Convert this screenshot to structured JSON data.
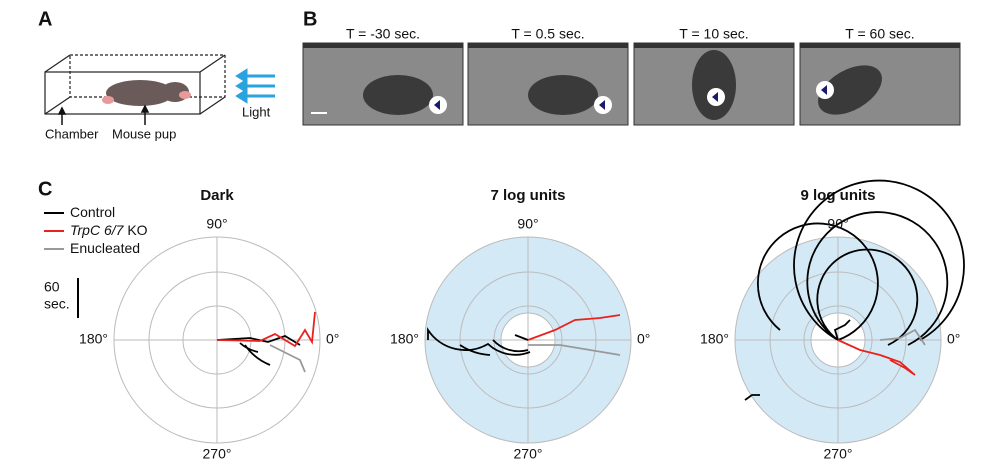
{
  "panel_a": {
    "label": "A",
    "chamber": "Chamber",
    "pup": "Mouse pup",
    "light": "Light"
  },
  "panel_b": {
    "label": "B",
    "frames": [
      "T = -30 sec.",
      "T = 0.5 sec.",
      "T = 10 sec.",
      "T = 60 sec."
    ]
  },
  "panel_c": {
    "label": "C",
    "legend": [
      {
        "name": "Control",
        "color": "#000000"
      },
      {
        "name": "TrpC 6/7",
        "suffix": "KO",
        "color": "#e8231f"
      },
      {
        "name": "Enucleated",
        "color": "#999999"
      }
    ],
    "scale_label": [
      "60",
      "sec."
    ],
    "plots": [
      {
        "title": "Dark",
        "background": "#ffffff",
        "angles": [
          "90°",
          "180°",
          "0°",
          "270°"
        ]
      },
      {
        "title": "7 log units",
        "background": "#d4e9f6",
        "angles": [
          "90°",
          "180°",
          "0°",
          "270°"
        ]
      },
      {
        "title": "9 log units",
        "background": "#d4e9f6",
        "angles": [
          "90°",
          "180°",
          "0°",
          "270°"
        ]
      }
    ]
  }
}
